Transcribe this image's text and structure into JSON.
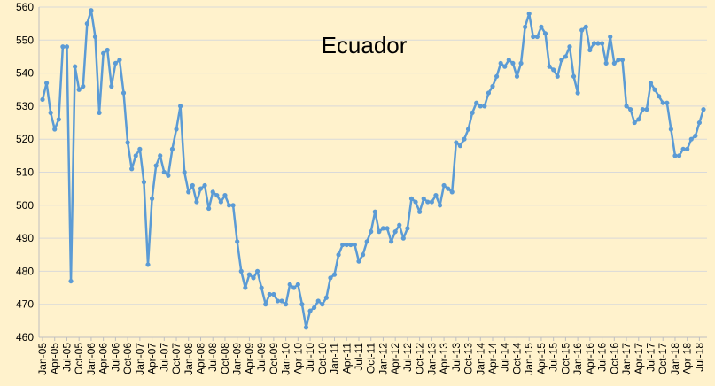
{
  "chart_data": {
    "type": "line",
    "title": "Ecuador",
    "xlabel": "",
    "ylabel": "",
    "ylim": [
      460,
      560
    ],
    "yticks": [
      460,
      470,
      480,
      490,
      500,
      510,
      520,
      530,
      540,
      550,
      560
    ],
    "grid": true,
    "legend": "none",
    "colors": {
      "line": "#5b9bd5",
      "marker": "#5b9bd5",
      "grid": "#d9d9d9",
      "background": "#fff2cc"
    },
    "x_tick_labels": [
      "Jan-05",
      "Apr-05",
      "Jul-05",
      "Oct-05",
      "Jan-06",
      "Apr-06",
      "Jul-06",
      "Oct-06",
      "Jan-07",
      "Apr-07",
      "Jul-07",
      "Oct-07",
      "Jan-08",
      "Apr-08",
      "Jul-08",
      "Oct-08",
      "Jan-09",
      "Apr-09",
      "Jul-09",
      "Oct-09",
      "Jan-10",
      "Apr-10",
      "Jul-10",
      "Oct-10",
      "Jan-11",
      "Apr-11",
      "Jul-11",
      "Oct-11",
      "Jan-12",
      "Apr-12",
      "Jul-12",
      "Oct-12",
      "Jan-13",
      "Apr-13",
      "Jul-13",
      "Oct-13",
      "Jan-14",
      "Apr-14",
      "Jul-14",
      "Oct-14",
      "Jan-15",
      "Apr-15",
      "Jul-15",
      "Oct-15",
      "Jan-16",
      "Apr-16",
      "Jul-16",
      "Oct-16",
      "Jan-17",
      "Apr-17",
      "Jul-17",
      "Oct-17",
      "Jan-18",
      "Apr-18",
      "Jul-18"
    ],
    "start_month": "Jan-05",
    "series": [
      {
        "values": [
          532,
          537,
          528,
          523,
          526,
          548,
          548,
          477,
          542,
          535,
          536,
          555,
          559,
          551,
          528,
          546,
          547,
          536,
          543,
          544,
          534,
          519,
          511,
          515,
          517,
          507,
          482,
          502,
          512,
          515,
          510,
          509,
          517,
          523,
          530,
          510,
          504,
          506,
          501,
          505,
          506,
          499,
          504,
          503,
          501,
          503,
          500,
          500,
          489,
          480,
          475,
          479,
          478,
          480,
          475,
          470,
          473,
          473,
          471,
          471,
          470,
          476,
          475,
          476,
          470,
          463,
          468,
          469,
          471,
          470,
          472,
          478,
          479,
          485,
          488,
          488,
          488,
          488,
          483,
          485,
          489,
          492,
          498,
          492,
          493,
          493,
          489,
          492,
          494,
          490,
          493,
          502,
          501,
          498,
          502,
          501,
          501,
          503,
          500,
          506,
          505,
          504,
          519,
          518,
          520,
          523,
          528,
          531,
          530,
          530,
          534,
          536,
          539,
          543,
          542,
          544,
          543,
          539,
          543,
          554,
          558,
          551,
          551,
          554,
          552,
          542,
          541,
          539,
          544,
          545,
          548,
          539,
          534,
          553,
          554,
          547,
          549,
          549,
          549,
          543,
          551,
          543,
          544,
          544,
          530,
          529,
          525,
          526,
          529,
          529,
          537,
          535,
          533,
          531,
          531,
          523,
          515,
          515,
          517,
          517,
          520,
          521,
          525,
          529
        ]
      }
    ]
  }
}
